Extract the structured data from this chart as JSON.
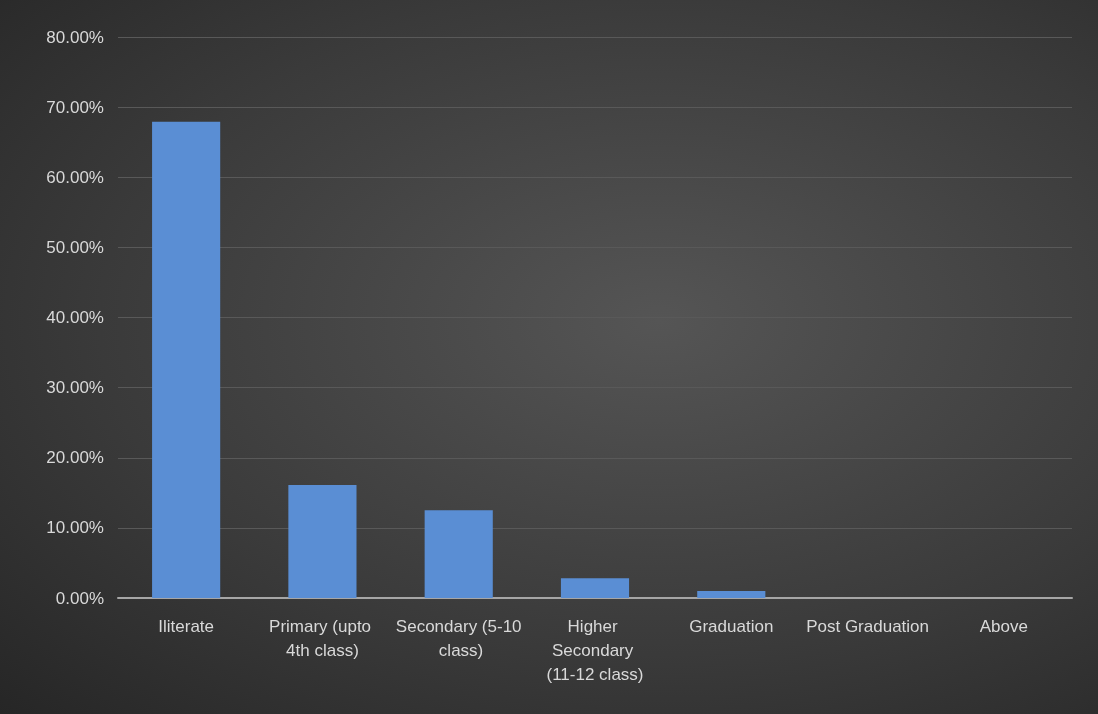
{
  "chart_data": {
    "type": "bar",
    "categories": [
      "Iliterate",
      "Primary (upto 4th class)",
      "Secondary (5-10 class)",
      "Higher Secondary (11-12 class)",
      "Graduation",
      "Post Graduation",
      "Above"
    ],
    "values": [
      67.9,
      16.1,
      12.5,
      2.8,
      1.0,
      0,
      0
    ],
    "color": "#5a8ed4",
    "ylim": [
      0,
      80
    ],
    "yticks": [
      {
        "value": 0,
        "label": "0.00%"
      },
      {
        "value": 10,
        "label": "10.00%"
      },
      {
        "value": 20,
        "label": "20.00%"
      },
      {
        "value": 30,
        "label": "30.00%"
      },
      {
        "value": 40,
        "label": "40.00%"
      },
      {
        "value": 50,
        "label": "50.00%"
      },
      {
        "value": 60,
        "label": "60.00%"
      },
      {
        "value": 70,
        "label": "70.00%"
      },
      {
        "value": 80,
        "label": "80.00%"
      }
    ],
    "grid": "y"
  }
}
